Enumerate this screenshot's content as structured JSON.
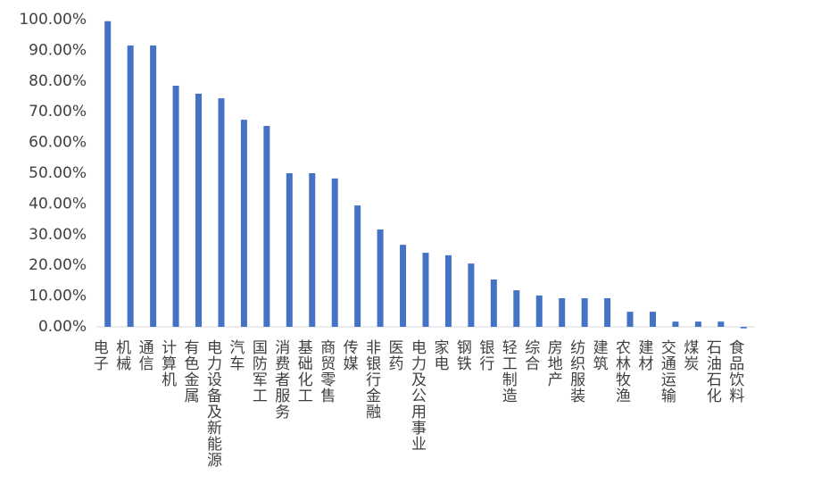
{
  "chart_data": {
    "type": "bar",
    "categories": [
      "电子",
      "机械",
      "通信",
      "计算机",
      "有色金属",
      "电力设备及新能源",
      "汽车",
      "国防军工",
      "消费者服务",
      "基础化工",
      "商贸零售",
      "传媒",
      "非银行金融",
      "医药",
      "电力及公用事业",
      "家电",
      "钢铁",
      "银行",
      "轻工制造",
      "综合",
      "房地产",
      "纺织服装",
      "建筑",
      "农林牧渔",
      "建材",
      "交通运输",
      "煤炭",
      "石油石化",
      "食品饮料"
    ],
    "values": [
      99.5,
      91.6,
      91.6,
      78.5,
      75.9,
      74.4,
      67.4,
      65.4,
      50.0,
      50.0,
      48.3,
      39.5,
      31.7,
      26.7,
      24.1,
      23.3,
      20.6,
      15.4,
      11.9,
      10.2,
      9.3,
      9.3,
      9.3,
      4.9,
      4.9,
      1.7,
      1.7,
      1.7,
      -0.5
    ],
    "color": "#4472c4",
    "ylim": [
      0,
      100
    ],
    "yticks": [
      {
        "value": 0,
        "label": "0.00%"
      },
      {
        "value": 10,
        "label": "10.00%"
      },
      {
        "value": 20,
        "label": "20.00%"
      },
      {
        "value": 30,
        "label": "30.00%"
      },
      {
        "value": 40,
        "label": "40.00%"
      },
      {
        "value": 50,
        "label": "50.00%"
      },
      {
        "value": 60,
        "label": "60.00%"
      },
      {
        "value": 70,
        "label": "70.00%"
      },
      {
        "value": 80,
        "label": "80.00%"
      },
      {
        "value": 90,
        "label": "90.00%"
      },
      {
        "value": 100,
        "label": "100.00%"
      }
    ],
    "grid": false
  }
}
